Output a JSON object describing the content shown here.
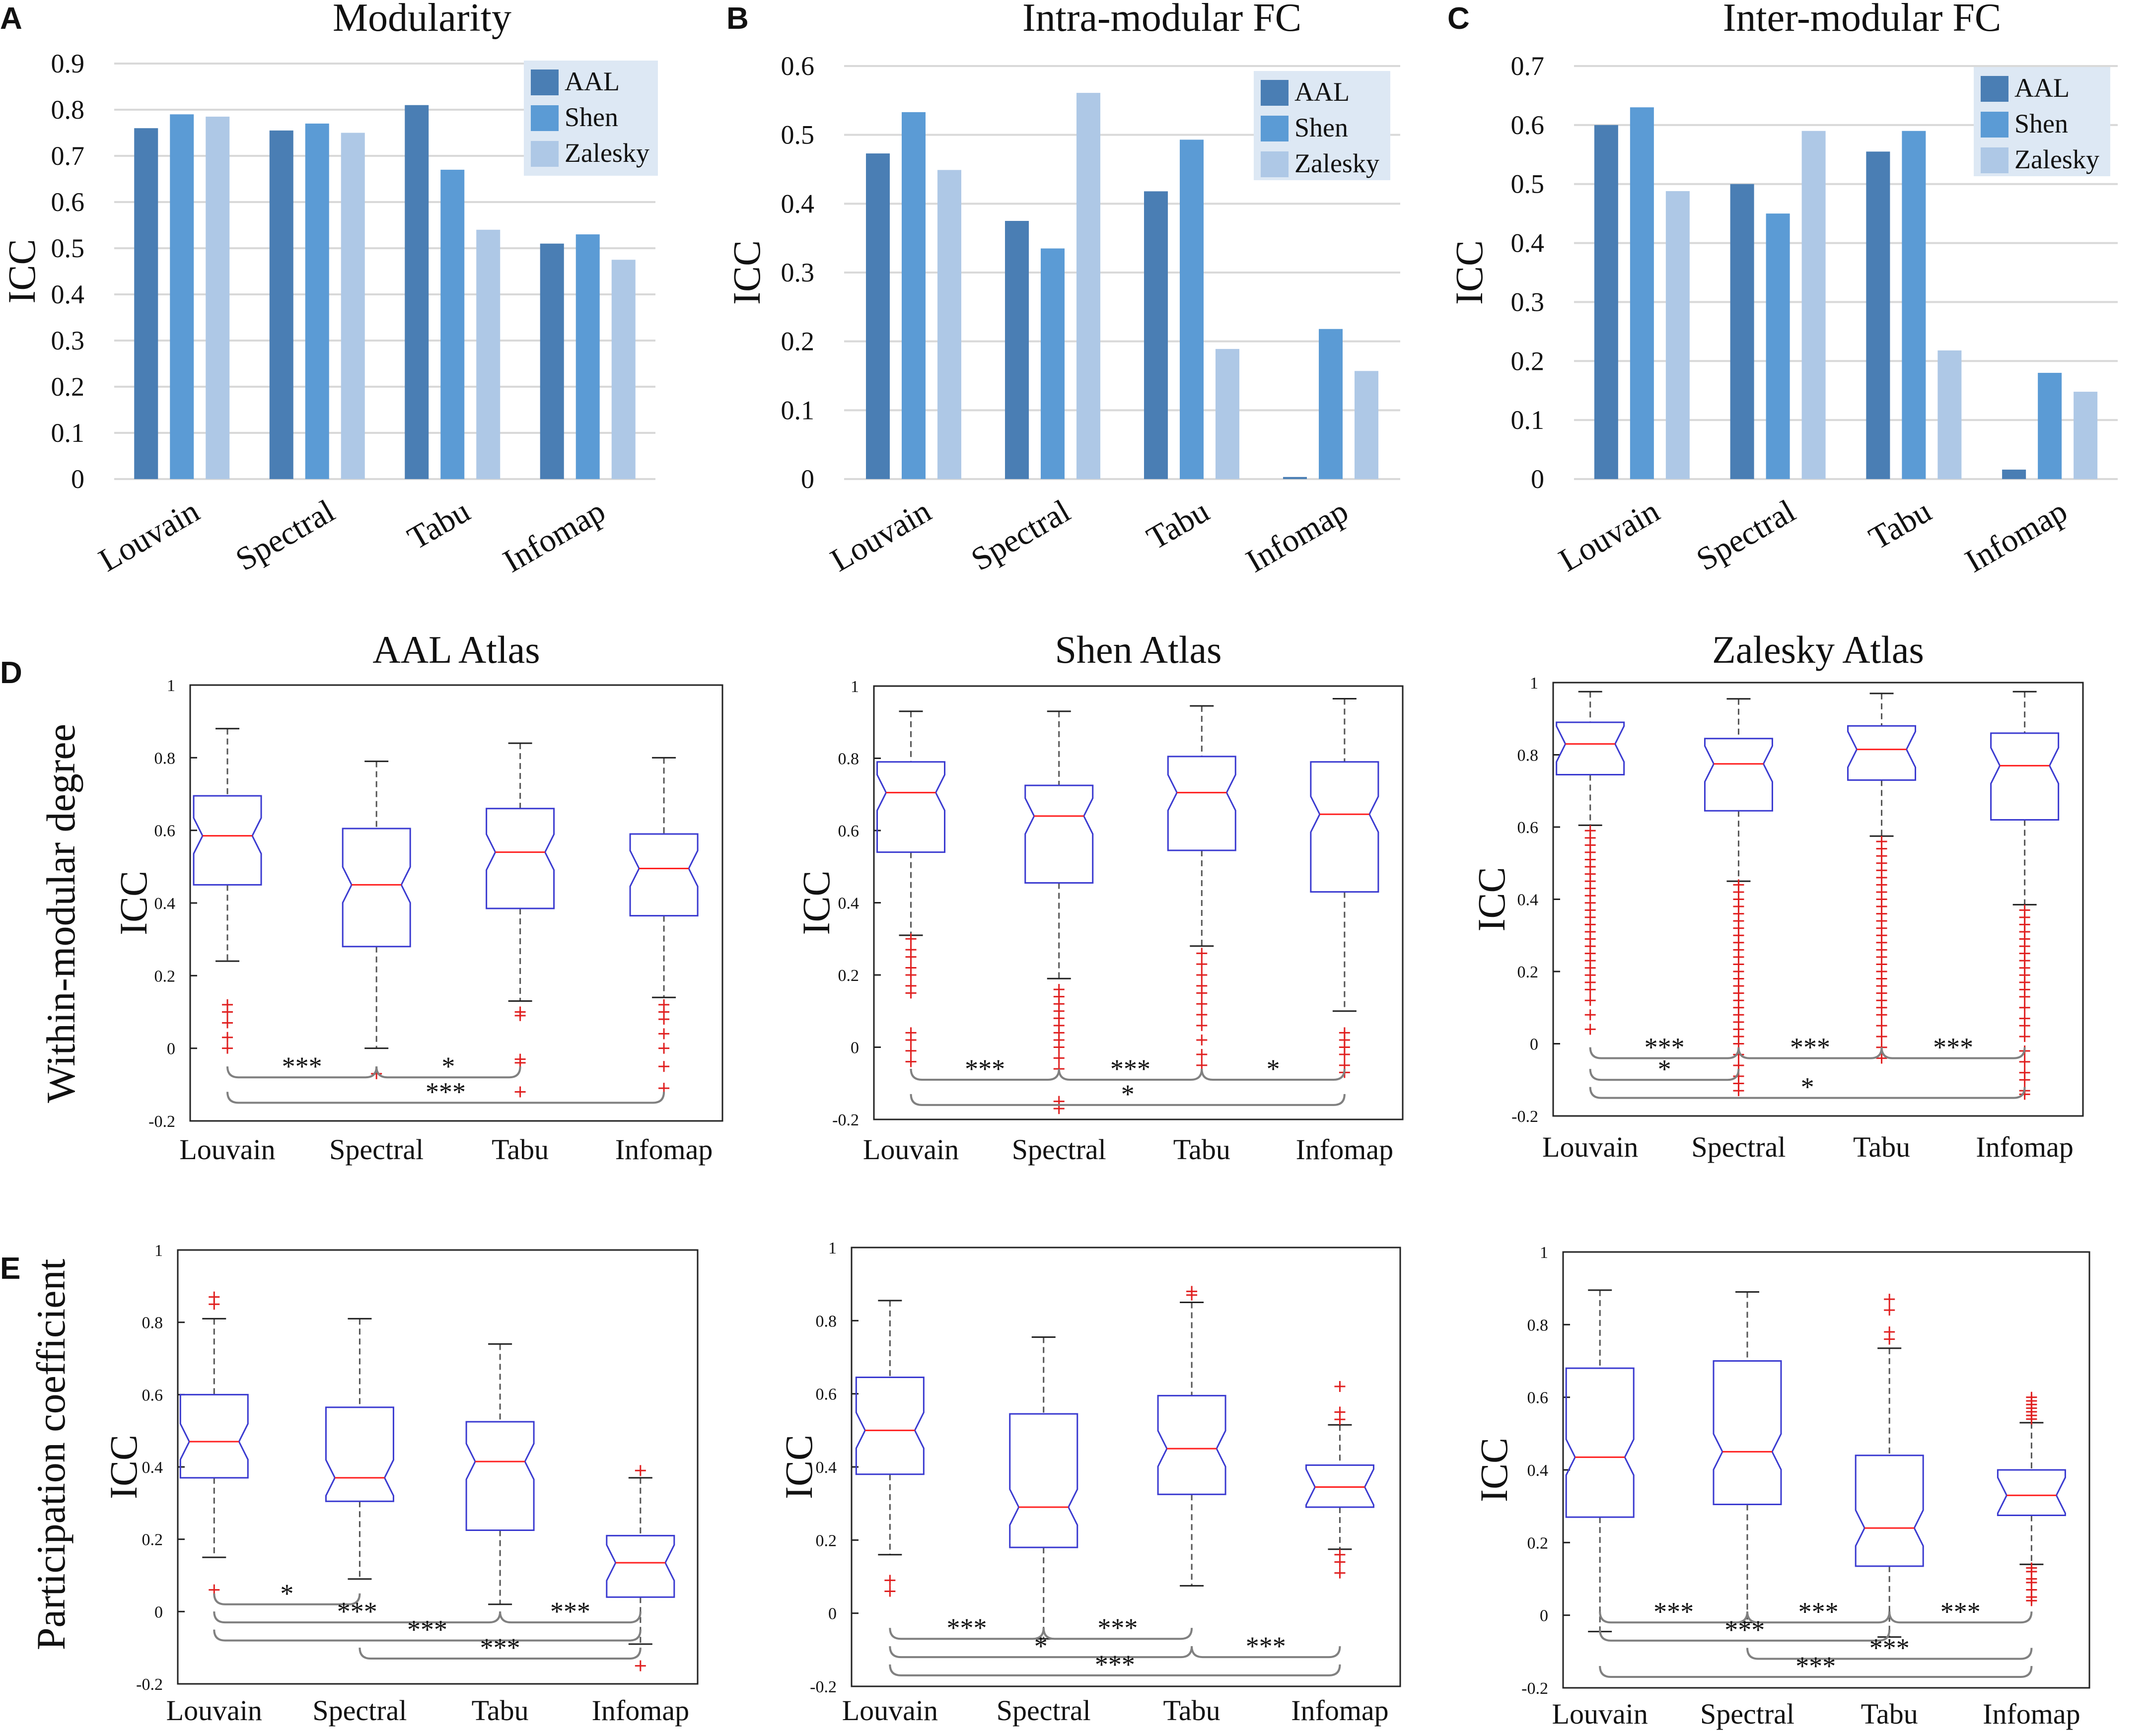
{
  "colors": {
    "aal": "#4A7EB4",
    "shen": "#5B9BD5",
    "zalesky": "#AEC8E6",
    "legend_bg": "#DDE8F4",
    "grid": "#D9D9D9",
    "box": "#3A3AD0",
    "median": "#FF2020",
    "outlier": "#E02020",
    "whisker": "#555555",
    "bracket": "#808080"
  },
  "figure": {
    "row_labels": {
      "D": "Within-modular degree",
      "E": "Participation coefficient"
    }
  },
  "chart_data": [
    {
      "id": "A",
      "panel_letter": "A",
      "type": "bar",
      "title": "Modularity",
      "ylabel": "ICC",
      "ylim": [
        0,
        0.9
      ],
      "yticks": [
        "0",
        "0.1",
        "0.2",
        "0.3",
        "0.4",
        "0.5",
        "0.6",
        "0.7",
        "0.8",
        "0.9"
      ],
      "categories": [
        "Louvain",
        "Spectral",
        "Tabu",
        "Infomap"
      ],
      "series": [
        {
          "name": "AAL",
          "values": [
            0.76,
            0.755,
            0.81,
            0.51
          ]
        },
        {
          "name": "Shen",
          "values": [
            0.79,
            0.77,
            0.67,
            0.53
          ]
        },
        {
          "name": "Zalesky",
          "values": [
            0.785,
            0.75,
            0.54,
            0.475
          ]
        }
      ]
    },
    {
      "id": "B",
      "panel_letter": "B",
      "type": "bar",
      "title": "Intra-modular FC",
      "ylabel": "ICC",
      "ylim": [
        0,
        0.6
      ],
      "yticks": [
        "0",
        "0.1",
        "0.2",
        "0.3",
        "0.4",
        "0.5",
        "0.6"
      ],
      "categories": [
        "Louvain",
        "Spectral",
        "Tabu",
        "Infomap"
      ],
      "series": [
        {
          "name": "AAL",
          "values": [
            0.473,
            0.375,
            0.418,
            0.003
          ]
        },
        {
          "name": "Shen",
          "values": [
            0.533,
            0.335,
            0.493,
            0.218
          ]
        },
        {
          "name": "Zalesky",
          "values": [
            0.449,
            0.561,
            0.189,
            0.157
          ]
        }
      ]
    },
    {
      "id": "C",
      "panel_letter": "C",
      "type": "bar",
      "title": "Inter-modular FC",
      "ylabel": "ICC",
      "ylim": [
        0,
        0.7
      ],
      "yticks": [
        "0",
        "0.1",
        "0.2",
        "0.3",
        "0.4",
        "0.5",
        "0.6",
        "0.7"
      ],
      "categories": [
        "Louvain",
        "Spectral",
        "Tabu",
        "Infomap"
      ],
      "series": [
        {
          "name": "AAL",
          "values": [
            0.6,
            0.5,
            0.555,
            0.016
          ]
        },
        {
          "name": "Shen",
          "values": [
            0.63,
            0.45,
            0.59,
            0.18
          ]
        },
        {
          "name": "Zalesky",
          "values": [
            0.488,
            0.59,
            0.218,
            0.148
          ]
        }
      ]
    },
    {
      "id": "D1",
      "panel_letter": "D",
      "type": "box",
      "title": "AAL Atlas",
      "ylabel": "ICC",
      "ylim": [
        -0.2,
        1
      ],
      "yticks": [
        "-0.2",
        "0",
        "0.2",
        "0.4",
        "0.6",
        "0.8",
        "1"
      ],
      "categories": [
        "Louvain",
        "Spectral",
        "Tabu",
        "Infomap"
      ],
      "boxes": [
        {
          "q1": 0.45,
          "median": 0.585,
          "q3": 0.695,
          "whisker_low": 0.24,
          "whisker_high": 0.88,
          "outliers": [
            0.12,
            0.1,
            0.07,
            0.03,
            0.0
          ]
        },
        {
          "q1": 0.28,
          "median": 0.45,
          "q3": 0.605,
          "whisker_low": 0.0,
          "whisker_high": 0.79,
          "outliers": [
            -0.07
          ]
        },
        {
          "q1": 0.385,
          "median": 0.54,
          "q3": 0.66,
          "whisker_low": 0.13,
          "whisker_high": 0.84,
          "outliers": [
            0.1,
            0.09,
            -0.03,
            -0.04,
            -0.12
          ]
        },
        {
          "q1": 0.365,
          "median": 0.495,
          "q3": 0.59,
          "whisker_low": 0.14,
          "whisker_high": 0.8,
          "outliers": [
            0.12,
            0.1,
            0.08,
            0.04,
            0.0,
            -0.05,
            -0.11
          ]
        }
      ],
      "significance": [
        {
          "from": 0,
          "to": 1,
          "label": "***",
          "y": -0.08
        },
        {
          "from": 1,
          "to": 2,
          "label": "*",
          "y": -0.08
        },
        {
          "from": 0,
          "to": 3,
          "label": "***",
          "y": -0.15
        }
      ]
    },
    {
      "id": "D2",
      "panel_letter": "",
      "type": "box",
      "title": "Shen Atlas",
      "ylabel": "ICC",
      "ylim": [
        -0.2,
        1
      ],
      "yticks": [
        "-0.2",
        "0",
        "0.2",
        "0.4",
        "0.6",
        "0.8",
        "1"
      ],
      "categories": [
        "Louvain",
        "Spectral",
        "Tabu",
        "Infomap"
      ],
      "boxes": [
        {
          "q1": 0.54,
          "median": 0.705,
          "q3": 0.79,
          "whisker_low": 0.31,
          "whisker_high": 0.93,
          "outliers": [
            0.3,
            0.27,
            0.25,
            0.22,
            0.2,
            0.17,
            0.15,
            0.04,
            0.02,
            -0.01,
            -0.04
          ]
        },
        {
          "q1": 0.455,
          "median": 0.64,
          "q3": 0.725,
          "whisker_low": 0.19,
          "whisker_high": 0.93,
          "outliers": [
            0.16,
            0.14,
            0.12,
            0.1,
            0.08,
            0.06,
            0.04,
            0.02,
            0.0,
            -0.03,
            -0.06,
            -0.15,
            -0.17
          ]
        },
        {
          "q1": 0.545,
          "median": 0.705,
          "q3": 0.805,
          "whisker_low": 0.28,
          "whisker_high": 0.945,
          "outliers": [
            0.26,
            0.23,
            0.2,
            0.17,
            0.15,
            0.12,
            0.09,
            0.06,
            0.02,
            -0.02,
            -0.05
          ]
        },
        {
          "q1": 0.43,
          "median": 0.645,
          "q3": 0.79,
          "whisker_low": 0.1,
          "whisker_high": 0.965,
          "outliers": [
            0.04,
            0.02,
            0.0,
            -0.02,
            -0.05,
            -0.07
          ]
        }
      ],
      "significance": [
        {
          "from": 0,
          "to": 1,
          "label": "***",
          "y": -0.09
        },
        {
          "from": 1,
          "to": 2,
          "label": "***",
          "y": -0.09
        },
        {
          "from": 2,
          "to": 3,
          "label": "*",
          "y": -0.09
        },
        {
          "from": 0,
          "to": 3,
          "label": "*",
          "y": -0.16
        }
      ]
    },
    {
      "id": "D3",
      "panel_letter": "",
      "type": "box",
      "title": "Zalesky Atlas",
      "ylabel": "ICC",
      "ylim": [
        -0.2,
        1
      ],
      "yticks": [
        "-0.2",
        "0",
        "0.2",
        "0.4",
        "0.6",
        "0.8",
        "1"
      ],
      "categories": [
        "Louvain",
        "Spectral",
        "Tabu",
        "Infomap"
      ],
      "boxes": [
        {
          "q1": 0.745,
          "median": 0.83,
          "q3": 0.89,
          "whisker_low": 0.605,
          "whisker_high": 0.975,
          "outliers": [
            0.59,
            0.57,
            0.55,
            0.53,
            0.51,
            0.49,
            0.47,
            0.45,
            0.43,
            0.41,
            0.39,
            0.37,
            0.35,
            0.33,
            0.31,
            0.29,
            0.27,
            0.25,
            0.23,
            0.21,
            0.19,
            0.17,
            0.15,
            0.12,
            0.08,
            0.04
          ]
        },
        {
          "q1": 0.645,
          "median": 0.775,
          "q3": 0.845,
          "whisker_low": 0.45,
          "whisker_high": 0.955,
          "outliers": [
            0.44,
            0.42,
            0.4,
            0.38,
            0.36,
            0.34,
            0.32,
            0.3,
            0.28,
            0.26,
            0.24,
            0.22,
            0.2,
            0.18,
            0.16,
            0.14,
            0.12,
            0.1,
            0.08,
            0.06,
            0.04,
            0.02,
            0.0,
            -0.03,
            -0.06,
            -0.09,
            -0.11,
            -0.13
          ]
        },
        {
          "q1": 0.73,
          "median": 0.815,
          "q3": 0.88,
          "whisker_low": 0.575,
          "whisker_high": 0.97,
          "outliers": [
            0.56,
            0.54,
            0.52,
            0.5,
            0.48,
            0.46,
            0.44,
            0.42,
            0.4,
            0.38,
            0.36,
            0.34,
            0.32,
            0.3,
            0.28,
            0.26,
            0.24,
            0.22,
            0.2,
            0.18,
            0.16,
            0.14,
            0.12,
            0.1,
            0.08,
            0.05,
            0.02,
            -0.01,
            -0.04
          ]
        },
        {
          "q1": 0.62,
          "median": 0.77,
          "q3": 0.86,
          "whisker_low": 0.385,
          "whisker_high": 0.975,
          "outliers": [
            0.37,
            0.35,
            0.33,
            0.31,
            0.29,
            0.27,
            0.25,
            0.23,
            0.21,
            0.19,
            0.17,
            0.15,
            0.13,
            0.1,
            0.07,
            0.05,
            0.02,
            -0.02,
            -0.05,
            -0.08,
            -0.1,
            -0.13,
            -0.14
          ]
        }
      ],
      "significance": [
        {
          "from": 0,
          "to": 1,
          "label": "***",
          "y": -0.04
        },
        {
          "from": 1,
          "to": 2,
          "label": "***",
          "y": -0.04
        },
        {
          "from": 2,
          "to": 3,
          "label": "***",
          "y": -0.04
        },
        {
          "from": 0,
          "to": 1,
          "label": "*",
          "y": -0.1
        },
        {
          "from": 0,
          "to": 3,
          "label": "*",
          "y": -0.15
        }
      ]
    },
    {
      "id": "E1",
      "panel_letter": "E",
      "type": "box",
      "title": "",
      "ylabel": "ICC",
      "ylim": [
        -0.2,
        1
      ],
      "yticks": [
        "-0.2",
        "0",
        "0.2",
        "0.4",
        "0.6",
        "0.8",
        "1"
      ],
      "categories": [
        "Louvain",
        "Spectral",
        "Tabu",
        "Infomap"
      ],
      "boxes": [
        {
          "q1": 0.37,
          "median": 0.47,
          "q3": 0.6,
          "whisker_low": 0.15,
          "whisker_high": 0.81,
          "outliers": [
            0.87,
            0.85,
            0.06
          ]
        },
        {
          "q1": 0.305,
          "median": 0.37,
          "q3": 0.565,
          "whisker_low": 0.09,
          "whisker_high": 0.81,
          "outliers": []
        },
        {
          "q1": 0.225,
          "median": 0.415,
          "q3": 0.525,
          "whisker_low": 0.02,
          "whisker_high": 0.74,
          "outliers": []
        },
        {
          "q1": 0.04,
          "median": 0.135,
          "q3": 0.21,
          "whisker_low": -0.09,
          "whisker_high": 0.37,
          "outliers": [
            0.39,
            -0.15
          ]
        }
      ],
      "significance": [
        {
          "from": 0,
          "to": 1,
          "label": "*",
          "y": 0.02
        },
        {
          "from": 0,
          "to": 2,
          "label": "***",
          "y": -0.03
        },
        {
          "from": 2,
          "to": 3,
          "label": "***",
          "y": -0.03
        },
        {
          "from": 0,
          "to": 3,
          "label": "***",
          "y": -0.08
        },
        {
          "from": 1,
          "to": 3,
          "label": "***",
          "y": -0.13
        }
      ]
    },
    {
      "id": "E2",
      "panel_letter": "",
      "type": "box",
      "title": "",
      "ylabel": "ICC",
      "ylim": [
        -0.2,
        1
      ],
      "yticks": [
        "-0.2",
        "0",
        "0.2",
        "0.4",
        "0.6",
        "0.8",
        "1"
      ],
      "categories": [
        "Louvain",
        "Spectral",
        "Tabu",
        "Infomap"
      ],
      "boxes": [
        {
          "q1": 0.38,
          "median": 0.5,
          "q3": 0.645,
          "whisker_low": 0.16,
          "whisker_high": 0.855,
          "outliers": [
            0.09,
            0.06
          ]
        },
        {
          "q1": 0.18,
          "median": 0.29,
          "q3": 0.545,
          "whisker_low": -0.07,
          "whisker_high": 0.755,
          "outliers": []
        },
        {
          "q1": 0.325,
          "median": 0.45,
          "q3": 0.595,
          "whisker_low": 0.075,
          "whisker_high": 0.85,
          "outliers": [
            0.88,
            0.87
          ]
        },
        {
          "q1": 0.29,
          "median": 0.345,
          "q3": 0.405,
          "whisker_low": 0.175,
          "whisker_high": 0.515,
          "outliers": [
            0.62,
            0.55,
            0.53,
            0.16,
            0.14,
            0.11
          ]
        }
      ],
      "significance": [
        {
          "from": 0,
          "to": 1,
          "label": "***",
          "y": -0.07
        },
        {
          "from": 1,
          "to": 2,
          "label": "***",
          "y": -0.07
        },
        {
          "from": 0,
          "to": 2,
          "label": "*",
          "y": -0.12
        },
        {
          "from": 2,
          "to": 3,
          "label": "***",
          "y": -0.12
        },
        {
          "from": 0,
          "to": 3,
          "label": "***",
          "y": -0.17
        }
      ]
    },
    {
      "id": "E3",
      "panel_letter": "",
      "type": "box",
      "title": "",
      "ylabel": "ICC",
      "ylim": [
        -0.2,
        1
      ],
      "yticks": [
        "-0.2",
        "0",
        "0.2",
        "0.4",
        "0.6",
        "0.8",
        "1"
      ],
      "categories": [
        "Louvain",
        "Spectral",
        "Tabu",
        "Infomap"
      ],
      "boxes": [
        {
          "q1": 0.27,
          "median": 0.435,
          "q3": 0.68,
          "whisker_low": -0.045,
          "whisker_high": 0.895,
          "outliers": []
        },
        {
          "q1": 0.305,
          "median": 0.45,
          "q3": 0.7,
          "whisker_low": -0.02,
          "whisker_high": 0.89,
          "outliers": []
        },
        {
          "q1": 0.135,
          "median": 0.24,
          "q3": 0.44,
          "whisker_low": -0.06,
          "whisker_high": 0.735,
          "outliers": [
            0.87,
            0.84,
            0.78,
            0.76
          ]
        },
        {
          "q1": 0.275,
          "median": 0.33,
          "q3": 0.4,
          "whisker_low": 0.14,
          "whisker_high": 0.53,
          "outliers": [
            0.6,
            0.59,
            0.58,
            0.57,
            0.56,
            0.55,
            0.54,
            0.13,
            0.12,
            0.1,
            0.09,
            0.07,
            0.05,
            0.04
          ]
        }
      ],
      "significance": [
        {
          "from": 0,
          "to": 1,
          "label": "***",
          "y": -0.02
        },
        {
          "from": 1,
          "to": 2,
          "label": "***",
          "y": -0.02
        },
        {
          "from": 2,
          "to": 3,
          "label": "***",
          "y": -0.02
        },
        {
          "from": 0,
          "to": 2,
          "label": "***",
          "y": -0.07
        },
        {
          "from": 1,
          "to": 3,
          "label": "***",
          "y": -0.12
        },
        {
          "from": 0,
          "to": 3,
          "label": "***",
          "y": -0.17
        }
      ]
    }
  ]
}
